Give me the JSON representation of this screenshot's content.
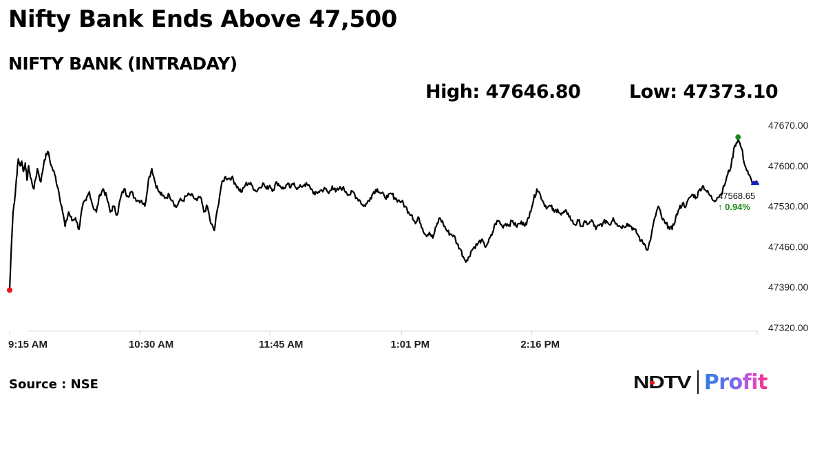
{
  "header": {
    "headline": "Nifty Bank Ends Above 47,500",
    "subtitle": "NIFTY BANK (INTRADAY)",
    "high_label": "High: 47646.80",
    "low_label": "Low: 47373.10"
  },
  "footer": {
    "source": "Source : NSE",
    "logo_left": "NDTV",
    "logo_right": "Profit"
  },
  "last_value": {
    "price": "47568.65",
    "change": "0.94%",
    "arrow": "↑",
    "change_color": "#1a8a1a"
  },
  "colors": {
    "line": "#000000",
    "open_marker": "#e8141a",
    "high_marker": "#1a8a1a",
    "last_marker": "#1420c8",
    "axis": "#d9d9d9"
  },
  "chart_data": {
    "type": "line",
    "title": "NIFTY BANK (INTRADAY)",
    "subtitle": "Nifty Bank Ends Above 47,500",
    "xlabel": "",
    "ylabel": "",
    "ylim": [
      47320,
      47670
    ],
    "y_ticks": [
      "47670.00",
      "47600.00",
      "47530.00",
      "47460.00",
      "47390.00",
      "47320.00"
    ],
    "x_ticks": [
      "9:15 AM",
      "10:30 AM",
      "11:45 AM",
      "1:01 PM",
      "2:16 PM"
    ],
    "x_tick_minutes": [
      0,
      75,
      150,
      226,
      301
    ],
    "x_range_minutes": [
      0,
      431
    ],
    "grid": false,
    "legend": null,
    "annotations": {
      "high": 47646.8,
      "low": 47373.1,
      "last": 47568.65,
      "change_pct": 0.94
    },
    "series": [
      {
        "name": "NIFTY BANK",
        "x_minutes": [
          0,
          1,
          2,
          3,
          4,
          5,
          6,
          7,
          8,
          9,
          10,
          11,
          12,
          14,
          16,
          18,
          20,
          22,
          24,
          26,
          28,
          30,
          32,
          34,
          36,
          38,
          40,
          42,
          44,
          46,
          48,
          50,
          52,
          54,
          56,
          58,
          60,
          62,
          64,
          66,
          68,
          70,
          72,
          74,
          76,
          78,
          80,
          82,
          84,
          86,
          88,
          90,
          92,
          94,
          96,
          98,
          100,
          102,
          104,
          106,
          108,
          110,
          112,
          114,
          116,
          118,
          120,
          122,
          124,
          126,
          128,
          130,
          132,
          134,
          136,
          138,
          140,
          142,
          144,
          146,
          148,
          150,
          152,
          154,
          156,
          158,
          160,
          162,
          164,
          166,
          168,
          170,
          172,
          174,
          176,
          178,
          180,
          182,
          184,
          186,
          188,
          190,
          192,
          194,
          196,
          198,
          200,
          202,
          204,
          206,
          208,
          210,
          212,
          214,
          216,
          218,
          220,
          222,
          224,
          226,
          228,
          230,
          232,
          234,
          236,
          238,
          240,
          242,
          244,
          246,
          248,
          250,
          252,
          254,
          256,
          258,
          260,
          262,
          264,
          266,
          268,
          270,
          272,
          274,
          276,
          278,
          280,
          282,
          284,
          286,
          288,
          290,
          292,
          294,
          296,
          298,
          300,
          302,
          304,
          306,
          308,
          310,
          312,
          314,
          316,
          318,
          320,
          322,
          324,
          326,
          328,
          330,
          332,
          334,
          336,
          338,
          340,
          342,
          344,
          346,
          348,
          350,
          352,
          354,
          356,
          358,
          360,
          362,
          364,
          366,
          368,
          370,
          372,
          374,
          376,
          378,
          380,
          382,
          384,
          386,
          388,
          390,
          392,
          394,
          396,
          398,
          400,
          402,
          404,
          406,
          408,
          410,
          412,
          414,
          416,
          418,
          420,
          422,
          424,
          426,
          428,
          430,
          431
        ],
        "values": [
          47385,
          47460,
          47520,
          47545,
          47580,
          47612,
          47600,
          47608,
          47590,
          47605,
          47575,
          47600,
          47580,
          47560,
          47595,
          47572,
          47610,
          47625,
          47600,
          47585,
          47560,
          47530,
          47495,
          47520,
          47505,
          47510,
          47490,
          47530,
          47540,
          47555,
          47530,
          47520,
          47550,
          47560,
          47545,
          47520,
          47530,
          47515,
          47545,
          47560,
          47548,
          47555,
          47545,
          47540,
          47540,
          47530,
          47575,
          47595,
          47570,
          47555,
          47548,
          47545,
          47550,
          47540,
          47528,
          47540,
          47540,
          47548,
          47550,
          47545,
          47540,
          47546,
          47520,
          47530,
          47500,
          47488,
          47528,
          47565,
          47580,
          47578,
          47580,
          47570,
          47560,
          47555,
          47568,
          47570,
          47565,
          47556,
          47562,
          47570,
          47560,
          47566,
          47558,
          47572,
          47565,
          47560,
          47568,
          47562,
          47570,
          47560,
          47564,
          47568,
          47566,
          47560,
          47550,
          47555,
          47558,
          47560,
          47552,
          47565,
          47555,
          47560,
          47562,
          47555,
          47550,
          47555,
          47545,
          47540,
          47530,
          47535,
          47545,
          47555,
          47560,
          47552,
          47548,
          47545,
          47552,
          47545,
          47540,
          47538,
          47530,
          47520,
          47515,
          47500,
          47510,
          47492,
          47480,
          47485,
          47475,
          47495,
          47510,
          47500,
          47488,
          47482,
          47480,
          47465,
          47455,
          47440,
          47436,
          47452,
          47460,
          47465,
          47472,
          47460,
          47468,
          47480,
          47500,
          47505,
          47495,
          47500,
          47498,
          47505,
          47495,
          47500,
          47502,
          47498,
          47520,
          47540,
          47560,
          47550,
          47535,
          47528,
          47530,
          47520,
          47525,
          47515,
          47520,
          47518,
          47505,
          47498,
          47505,
          47495,
          47502,
          47500,
          47505,
          47490,
          47497,
          47500,
          47505,
          47498,
          47510,
          47500,
          47495,
          47495,
          47500,
          47496,
          47490,
          47482,
          47470,
          47465,
          47455,
          47480,
          47510,
          47530,
          47510,
          47500,
          47495,
          47490,
          47510,
          47525,
          47535,
          47530,
          47545,
          47550,
          47545,
          47560,
          47565,
          47555,
          47548,
          47540,
          47545,
          47550,
          47565,
          47585,
          47600,
          47635,
          47646,
          47630,
          47600,
          47585,
          47572,
          47569,
          47569
        ]
      }
    ]
  }
}
